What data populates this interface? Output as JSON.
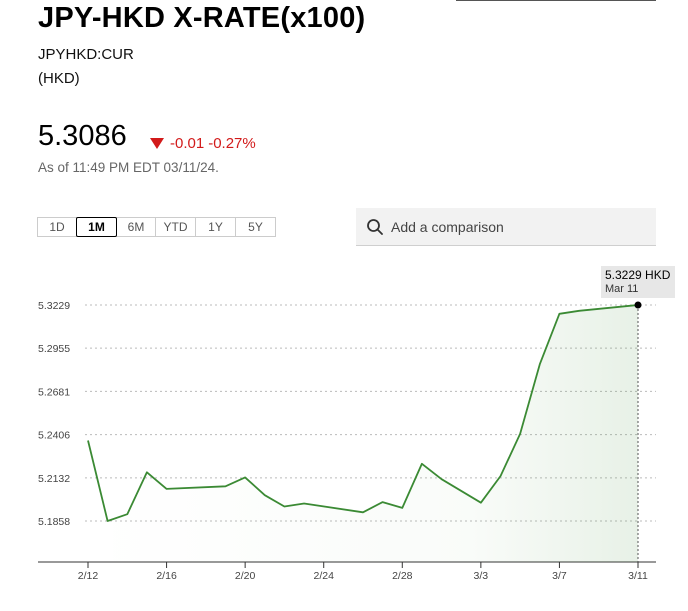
{
  "header": {
    "title": "JPY-HKD X-RATE(x100)",
    "ticker": "JPYHKD:CUR",
    "currency": "(HKD)"
  },
  "quote": {
    "price": "5.3086",
    "change": "-0.01",
    "change_pct": "-0.27%",
    "as_of": "As of 11:49 PM EDT 03/11/24."
  },
  "range_tabs": [
    {
      "label": "1D",
      "active": false
    },
    {
      "label": "1M",
      "active": true
    },
    {
      "label": "6M",
      "active": false
    },
    {
      "label": "YTD",
      "active": false
    },
    {
      "label": "1Y",
      "active": false
    },
    {
      "label": "5Y",
      "active": false
    }
  ],
  "comparison": {
    "placeholder": "Add a comparison",
    "icon": "search-icon"
  },
  "tooltip": {
    "value": "5.3229 HKD",
    "date": "Mar 11"
  },
  "colors": {
    "line": "#3b8a34",
    "negative": "#d21a1a"
  },
  "chart_data": {
    "type": "area",
    "y_ticks": [
      "5.3229",
      "5.2955",
      "5.2681",
      "5.2406",
      "5.2132",
      "5.1858"
    ],
    "x_ticks": [
      "2/12",
      "2/16",
      "2/20",
      "2/24",
      "2/28",
      "3/3",
      "3/7",
      "3/11"
    ],
    "ylim": [
      5.1858,
      5.3229
    ],
    "grid": true,
    "series": [
      {
        "x": [
          "2/12",
          "2/13",
          "2/14",
          "2/15",
          "2/16",
          "2/19",
          "2/20",
          "2/21",
          "2/22",
          "2/23",
          "2/26",
          "2/27",
          "2/28",
          "2/29",
          "3/1",
          "3/3",
          "3/4",
          "3/5",
          "3/6",
          "3/7",
          "3/8",
          "3/11"
        ],
        "values": [
          5.2369,
          5.1858,
          5.1901,
          5.2167,
          5.2062,
          5.2078,
          5.2135,
          5.2022,
          5.195,
          5.1969,
          5.1913,
          5.1978,
          5.1941,
          5.2221,
          5.2123,
          5.1974,
          5.2143,
          5.2411,
          5.2853,
          5.3173,
          5.3192,
          5.3229
        ]
      }
    ]
  }
}
